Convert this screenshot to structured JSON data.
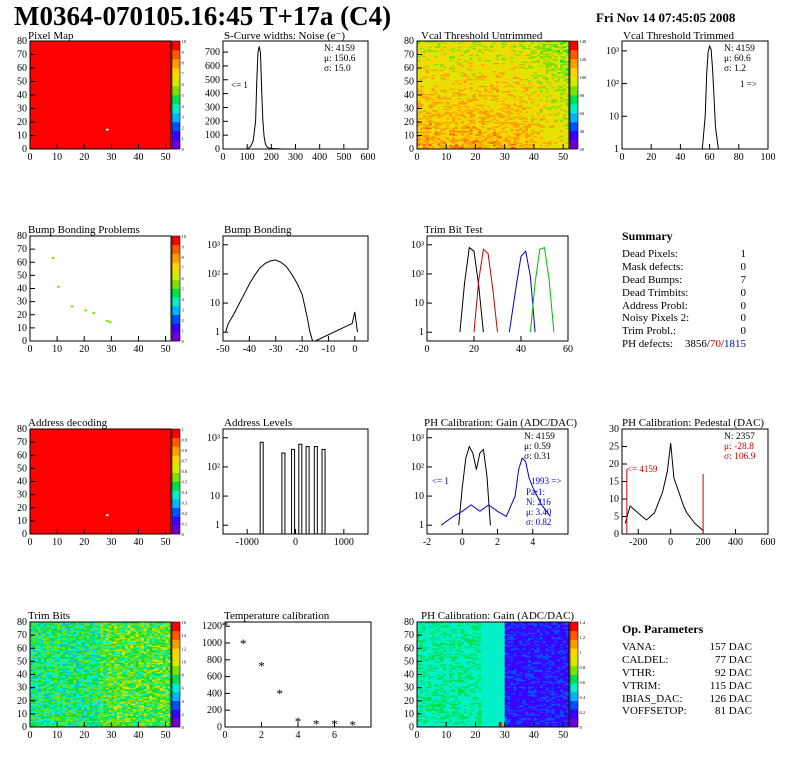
{
  "header": {
    "title": "M0364-070105.16:45 T+17a (C4)",
    "date": "Fri Nov 14 07:45:05 2008"
  },
  "palette": [
    "#7000d0",
    "#3a00ff",
    "#0050ff",
    "#00b4ff",
    "#00f0c8",
    "#00e04a",
    "#7ce000",
    "#d8e800",
    "#ffd400",
    "#ff9c00",
    "#ff5a00",
    "#ff0000"
  ],
  "panels": {
    "pixel_map": {
      "title": "Pixel Map",
      "xticks": [
        "0",
        "10",
        "20",
        "30",
        "40",
        "50"
      ],
      "yticks": [
        "0",
        "10",
        "20",
        "30",
        "40",
        "50",
        "60",
        "70",
        "80"
      ],
      "zticks": [
        "0",
        "1",
        "2",
        "3",
        "4",
        "5",
        "6",
        "7",
        "8",
        "9",
        "10"
      ]
    },
    "scurve": {
      "title": "S-Curve widths: Noise (e⁻)",
      "xticks": [
        "0",
        "100",
        "200",
        "300",
        "400",
        "500",
        "600"
      ],
      "yticks": [
        "0",
        "100",
        "200",
        "300",
        "400",
        "500",
        "600",
        "700"
      ],
      "stats": [
        "N: 4159",
        "μ: 150.6",
        "σ: 15.0"
      ],
      "underflow": "<= 1"
    },
    "vcal_untrimmed": {
      "title": "Vcal Threshold Untrimmed",
      "xticks": [
        "0",
        "10",
        "20",
        "30",
        "40",
        "50"
      ],
      "yticks": [
        "0",
        "10",
        "20",
        "30",
        "40",
        "50",
        "60",
        "70",
        "80"
      ],
      "zticks": [
        "20",
        "40",
        "60",
        "80",
        "100",
        "120",
        "140"
      ]
    },
    "vcal_trimmed": {
      "title": "Vcal Threshold Trimmed",
      "xticks": [
        "0",
        "20",
        "40",
        "60",
        "80",
        "100"
      ],
      "yticks": [
        "1",
        "10",
        "10²",
        "10³"
      ],
      "stats": [
        "N: 4159",
        "μ: 60.6",
        "σ:  1.2"
      ],
      "overflow": "1 =>"
    },
    "bump_problems": {
      "title": "Bump Bonding Problems",
      "xticks": [
        "0",
        "10",
        "20",
        "30",
        "40",
        "50"
      ],
      "yticks": [
        "0",
        "10",
        "20",
        "30",
        "40",
        "50",
        "60",
        "70",
        "80"
      ],
      "zticks": [
        "0",
        "1",
        "2",
        "3",
        "4",
        "5",
        "6",
        "7",
        "8",
        "9",
        "10"
      ]
    },
    "bump_bonding": {
      "title": "Bump Bonding",
      "xticks": [
        "-50",
        "-40",
        "-30",
        "-20",
        "-10",
        "0"
      ],
      "yticks": [
        "1",
        "10",
        "10²",
        "10³"
      ]
    },
    "trim_bit_test": {
      "title": "Trim Bit Test",
      "xticks": [
        "0",
        "20",
        "40",
        "60"
      ],
      "yticks": [
        "1",
        "10",
        "10²",
        "10³"
      ]
    },
    "address_decoding": {
      "title": "Address decoding",
      "xticks": [
        "0",
        "10",
        "20",
        "30",
        "40",
        "50"
      ],
      "yticks": [
        "0",
        "10",
        "20",
        "30",
        "40",
        "50",
        "60",
        "70",
        "80"
      ],
      "zticks": [
        "0",
        "0.1",
        "0.2",
        "0.3",
        "0.4",
        "0.5",
        "0.6",
        "0.7",
        "0.8",
        "0.9",
        "1"
      ]
    },
    "address_levels": {
      "title": "Address Levels",
      "xticks": [
        "-1000",
        "0",
        "1000"
      ],
      "yticks": [
        "1",
        "10",
        "10²",
        "10³"
      ]
    },
    "ph_gain": {
      "title": "PH Calibration: Gain (ADC/DAC)",
      "xticks": [
        "-2",
        "0",
        "2",
        "4"
      ],
      "yticks": [
        "1",
        "10",
        "10²",
        "10³"
      ],
      "stats": [
        "N: 4159",
        "μ: 0.59",
        "σ: 0.31"
      ],
      "underflow": "<= 1",
      "overflow": "1993 =>",
      "fit": [
        "Par1:",
        "N: 216",
        "μ: 3.40",
        "σ: 0.82"
      ]
    },
    "ph_pedestal": {
      "title": "PH Calibration: Pedestal (DAC)",
      "xticks": [
        "-200",
        "0",
        "200",
        "400",
        "600"
      ],
      "yticks": [
        "0",
        "5",
        "10",
        "15",
        "20",
        "25",
        "30"
      ],
      "stats": [
        "N: 2357",
        "μ: -28.8",
        "σ: 106.9"
      ],
      "underflow": "<= 4159"
    },
    "trim_bits": {
      "title": "Trim Bits",
      "xticks": [
        "0",
        "10",
        "20",
        "30",
        "40",
        "50"
      ],
      "yticks": [
        "0",
        "10",
        "20",
        "30",
        "40",
        "50",
        "60",
        "70",
        "80"
      ],
      "zticks": [
        "0",
        "2",
        "4",
        "6",
        "8",
        "10",
        "12",
        "14",
        "16"
      ]
    },
    "temperature": {
      "title": "Temperature calibration",
      "xticks": [
        "0",
        "2",
        "4",
        "6"
      ],
      "yticks": [
        "0",
        "200",
        "400",
        "600",
        "800",
        "1000",
        "1200"
      ]
    },
    "ph_gain_map": {
      "title": "PH Calibration: Gain (ADC/DAC)",
      "xticks": [
        "0",
        "10",
        "20",
        "30",
        "40",
        "50"
      ],
      "yticks": [
        "0",
        "10",
        "20",
        "30",
        "40",
        "50",
        "60",
        "70",
        "80"
      ],
      "zticks": [
        "0",
        "0.2",
        "0.4",
        "0.6",
        "0.8",
        "1",
        "1.2",
        "1.4"
      ]
    }
  },
  "summary": {
    "title": "Summary",
    "rows": [
      {
        "label": "Dead Pixels:",
        "value": "1"
      },
      {
        "label": "Mask defects:",
        "value": "0"
      },
      {
        "label": "Dead Bumps:",
        "value": "7"
      },
      {
        "label": "Dead Trimbits:",
        "value": "0"
      },
      {
        "label": "Address Probl:",
        "value": "0"
      },
      {
        "label": "Noisy Pixels 2:",
        "value": "0"
      },
      {
        "label": "Trim Probl.:",
        "value": "0"
      }
    ],
    "ph_defects": {
      "label": "PH defects:",
      "a": "3856",
      "s1": "/",
      "b": "70",
      "s2": "/",
      "c": "1815"
    }
  },
  "op_params": {
    "title": "Op. Parameters",
    "rows": [
      {
        "label": "VANA:",
        "value": "157 DAC"
      },
      {
        "label": "CALDEL:",
        "value": "77 DAC"
      },
      {
        "label": "VTHR:",
        "value": "92 DAC"
      },
      {
        "label": "VTRIM:",
        "value": "115 DAC"
      },
      {
        "label": "IBIAS_DAC:",
        "value": "126 DAC"
      },
      {
        "label": "VOFFSETOP:",
        "value": "81 DAC"
      }
    ]
  },
  "chart_data": [
    {
      "id": "pixel_map",
      "type": "heatmap",
      "title": "Pixel Map",
      "xlim": [
        0,
        52
      ],
      "ylim": [
        0,
        80
      ],
      "zlim": [
        0,
        10
      ],
      "fill": 10,
      "special_points": [
        {
          "x": 28,
          "y": 14,
          "z": 0
        }
      ]
    },
    {
      "id": "scurve",
      "type": "line",
      "title": "S-Curve widths: Noise (e⁻)",
      "xlim": [
        0,
        600
      ],
      "ylim": [
        0,
        780
      ],
      "x": [
        95,
        105,
        115,
        125,
        135,
        140,
        145,
        150,
        155,
        160,
        165,
        170,
        175,
        180,
        185,
        195,
        210,
        240,
        270
      ],
      "y": [
        0,
        5,
        20,
        60,
        200,
        500,
        700,
        740,
        690,
        420,
        200,
        90,
        40,
        20,
        10,
        5,
        3,
        1,
        0
      ],
      "stats": {
        "N": 4159,
        "mean": 150.6,
        "rms": 15.0
      },
      "underflow": 1
    },
    {
      "id": "vcal_untrimmed",
      "type": "heatmap",
      "title": "Vcal Threshold Untrimmed",
      "xlim": [
        0,
        52
      ],
      "ylim": [
        0,
        80
      ],
      "zlim": [
        0,
        150
      ],
      "description_values": "mostly 90-140"
    },
    {
      "id": "vcal_trimmed",
      "type": "line",
      "title": "Vcal Threshold Trimmed",
      "log_y": true,
      "xlim": [
        0,
        100
      ],
      "ylim": [
        1,
        2000
      ],
      "x": [
        55,
        57,
        58,
        59,
        60,
        61,
        62,
        63,
        64,
        66
      ],
      "y": [
        1,
        10,
        200,
        900,
        1400,
        1100,
        300,
        40,
        5,
        1
      ],
      "stats": {
        "N": 4159,
        "mean": 60.6,
        "rms": 1.2
      },
      "overflow": 1
    },
    {
      "id": "bump_problems",
      "type": "heatmap",
      "title": "Bump Bonding Problems",
      "xlim": [
        0,
        52
      ],
      "ylim": [
        0,
        80
      ],
      "zlim": [
        0,
        10
      ],
      "fill": 0,
      "special_points": [
        {
          "x": 8,
          "y": 63,
          "z": 5
        },
        {
          "x": 10,
          "y": 41,
          "z": 5
        },
        {
          "x": 15,
          "y": 26,
          "z": 5
        },
        {
          "x": 20,
          "y": 23,
          "z": 5
        },
        {
          "x": 23,
          "y": 21,
          "z": 5
        },
        {
          "x": 28,
          "y": 15,
          "z": 5
        },
        {
          "x": 29,
          "y": 14,
          "z": 5
        }
      ]
    },
    {
      "id": "bump_bonding",
      "type": "line",
      "title": "Bump Bonding",
      "log_y": true,
      "xlim": [
        -50,
        5
      ],
      "ylim": [
        0.5,
        2000
      ],
      "x": [
        -49,
        -48,
        -46,
        -44,
        -42,
        -40,
        -38,
        -36,
        -34,
        -32,
        -30,
        -28,
        -26,
        -24,
        -22,
        -20,
        -19,
        -18,
        -17,
        -16,
        -15,
        -1,
        0,
        1
      ],
      "y": [
        1,
        2,
        4,
        9,
        20,
        45,
        90,
        160,
        230,
        280,
        300,
        250,
        180,
        100,
        50,
        20,
        8,
        3,
        1,
        0.5,
        0.5,
        2,
        5,
        1
      ]
    },
    {
      "id": "trim_bit_test",
      "type": "line",
      "title": "Trim Bit Test",
      "log_y": true,
      "xlim": [
        0,
        60
      ],
      "ylim": [
        0.5,
        2000
      ],
      "series": [
        {
          "color": "#000000",
          "x": [
            14,
            16,
            18,
            20,
            22,
            24
          ],
          "y": [
            1,
            50,
            800,
            600,
            40,
            1
          ]
        },
        {
          "color": "#cc0000",
          "x": [
            20,
            22,
            24,
            26,
            28,
            30
          ],
          "y": [
            1,
            60,
            700,
            500,
            30,
            1
          ]
        },
        {
          "color": "#0000cc",
          "x": [
            35,
            38,
            40,
            42,
            44,
            46
          ],
          "y": [
            1,
            40,
            400,
            600,
            80,
            1
          ]
        },
        {
          "color": "#00bb00",
          "x": [
            44,
            46,
            48,
            50,
            52,
            54
          ],
          "y": [
            1,
            50,
            700,
            800,
            60,
            1
          ]
        }
      ]
    },
    {
      "id": "address_decoding",
      "type": "heatmap",
      "title": "Address decoding",
      "xlim": [
        0,
        52
      ],
      "ylim": [
        0,
        80
      ],
      "zlim": [
        0,
        1
      ],
      "fill": 1,
      "special_points": [
        {
          "x": 28,
          "y": 14,
          "z": 0
        }
      ]
    },
    {
      "id": "address_levels",
      "type": "bar",
      "title": "Address Levels",
      "log_y": true,
      "xlim": [
        -1500,
        1500
      ],
      "ylim": [
        0.5,
        2000
      ],
      "x": [
        -700,
        -250,
        -50,
        100,
        250,
        420,
        580
      ],
      "y": [
        700,
        300,
        400,
        600,
        500,
        500,
        400
      ]
    },
    {
      "id": "ph_gain",
      "type": "line",
      "title": "PH Calibration: Gain (ADC/DAC)",
      "log_y": true,
      "xlim": [
        -2,
        6
      ],
      "ylim": [
        0.5,
        2000
      ],
      "series": [
        {
          "color": "#000000",
          "x": [
            -0.2,
            0,
            0.2,
            0.4,
            0.6,
            0.8,
            1,
            1.2,
            1.4,
            1.6
          ],
          "y": [
            1,
            20,
            200,
            500,
            300,
            80,
            300,
            400,
            50,
            1
          ]
        },
        {
          "color": "#0000cc",
          "x": [
            -1.2,
            -0.5,
            0,
            0.5,
            1,
            1.5,
            2,
            2.5,
            3,
            3.2,
            3.4,
            3.6,
            3.8,
            4,
            4.5,
            5
          ],
          "y": [
            1,
            2,
            3,
            5,
            3,
            5,
            3,
            2,
            10,
            80,
            200,
            150,
            40,
            20,
            5,
            2
          ]
        }
      ],
      "stats": {
        "N": 4159,
        "mean": 0.59,
        "rms": 0.31
      },
      "underflow": 1,
      "overflow": 1993
    },
    {
      "id": "ph_pedestal",
      "type": "line",
      "title": "PH Calibration: Pedestal (DAC)",
      "xlim": [
        -300,
        600
      ],
      "ylim": [
        0,
        30
      ],
      "x": [
        -280,
        -250,
        -200,
        -150,
        -100,
        -50,
        -20,
        0,
        20,
        50,
        80,
        100,
        150,
        200
      ],
      "y": [
        3,
        8,
        6,
        4,
        6,
        12,
        18,
        26,
        16,
        12,
        8,
        6,
        3,
        1
      ],
      "stats": {
        "N": 2357,
        "mean": -28.8,
        "rms": 106.9
      },
      "underflow": 4159
    },
    {
      "id": "trim_bits",
      "type": "heatmap",
      "title": "Trim Bits",
      "xlim": [
        0,
        52
      ],
      "ylim": [
        0,
        80
      ],
      "zlim": [
        0,
        16
      ],
      "description_values": "mostly 6-9"
    },
    {
      "id": "temperature",
      "type": "scatter",
      "title": "Temperature calibration",
      "xlim": [
        0,
        8
      ],
      "ylim": [
        0,
        1250
      ],
      "x": [
        0,
        1,
        2,
        3,
        4,
        5,
        6,
        7
      ],
      "y": [
        1200,
        990,
        720,
        390,
        60,
        30,
        30,
        20
      ]
    },
    {
      "id": "ph_gain_map",
      "type": "heatmap",
      "title": "PH Calibration: Gain (ADC/DAC)",
      "xlim": [
        0,
        52
      ],
      "ylim": [
        0,
        80
      ],
      "zlim": [
        0,
        1.5
      ],
      "description_values": "columns 0-22 ~0.6, columns 28-52 ~0.25"
    }
  ]
}
